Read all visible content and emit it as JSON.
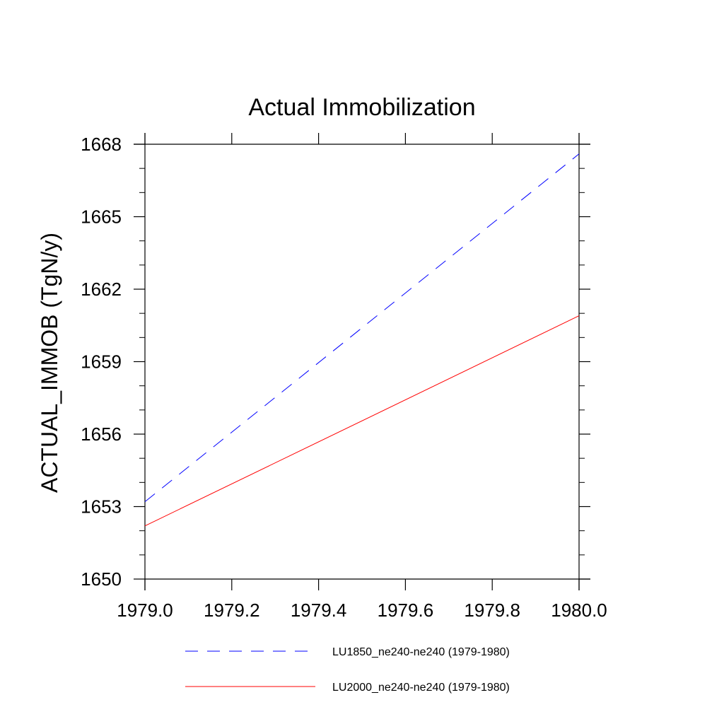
{
  "chart_data": {
    "type": "line",
    "title": "Actual Immobilization",
    "xlabel": "",
    "ylabel": "ACTUAL_IMMOB  (TgN/y)",
    "xlim": [
      1979.0,
      1980.0
    ],
    "ylim": [
      1650,
      1668
    ],
    "x_ticks": [
      "1979.0",
      "1979.2",
      "1979.4",
      "1979.6",
      "1979.8",
      "1980.0"
    ],
    "y_ticks": [
      "1650",
      "1653",
      "1656",
      "1659",
      "1662",
      "1665",
      "1668"
    ],
    "grid": false,
    "legend_position": "bottom",
    "series": [
      {
        "name": "LU1850_ne240-ne240 (1979-1980)",
        "color": "#0000ff",
        "style": "dashed",
        "x": [
          1979.0,
          1980.0
        ],
        "y": [
          1653.2,
          1667.6
        ]
      },
      {
        "name": "LU2000_ne240-ne240 (1979-1980)",
        "color": "#ff0000",
        "style": "solid",
        "x": [
          1979.0,
          1980.0
        ],
        "y": [
          1652.2,
          1660.9
        ]
      }
    ]
  }
}
